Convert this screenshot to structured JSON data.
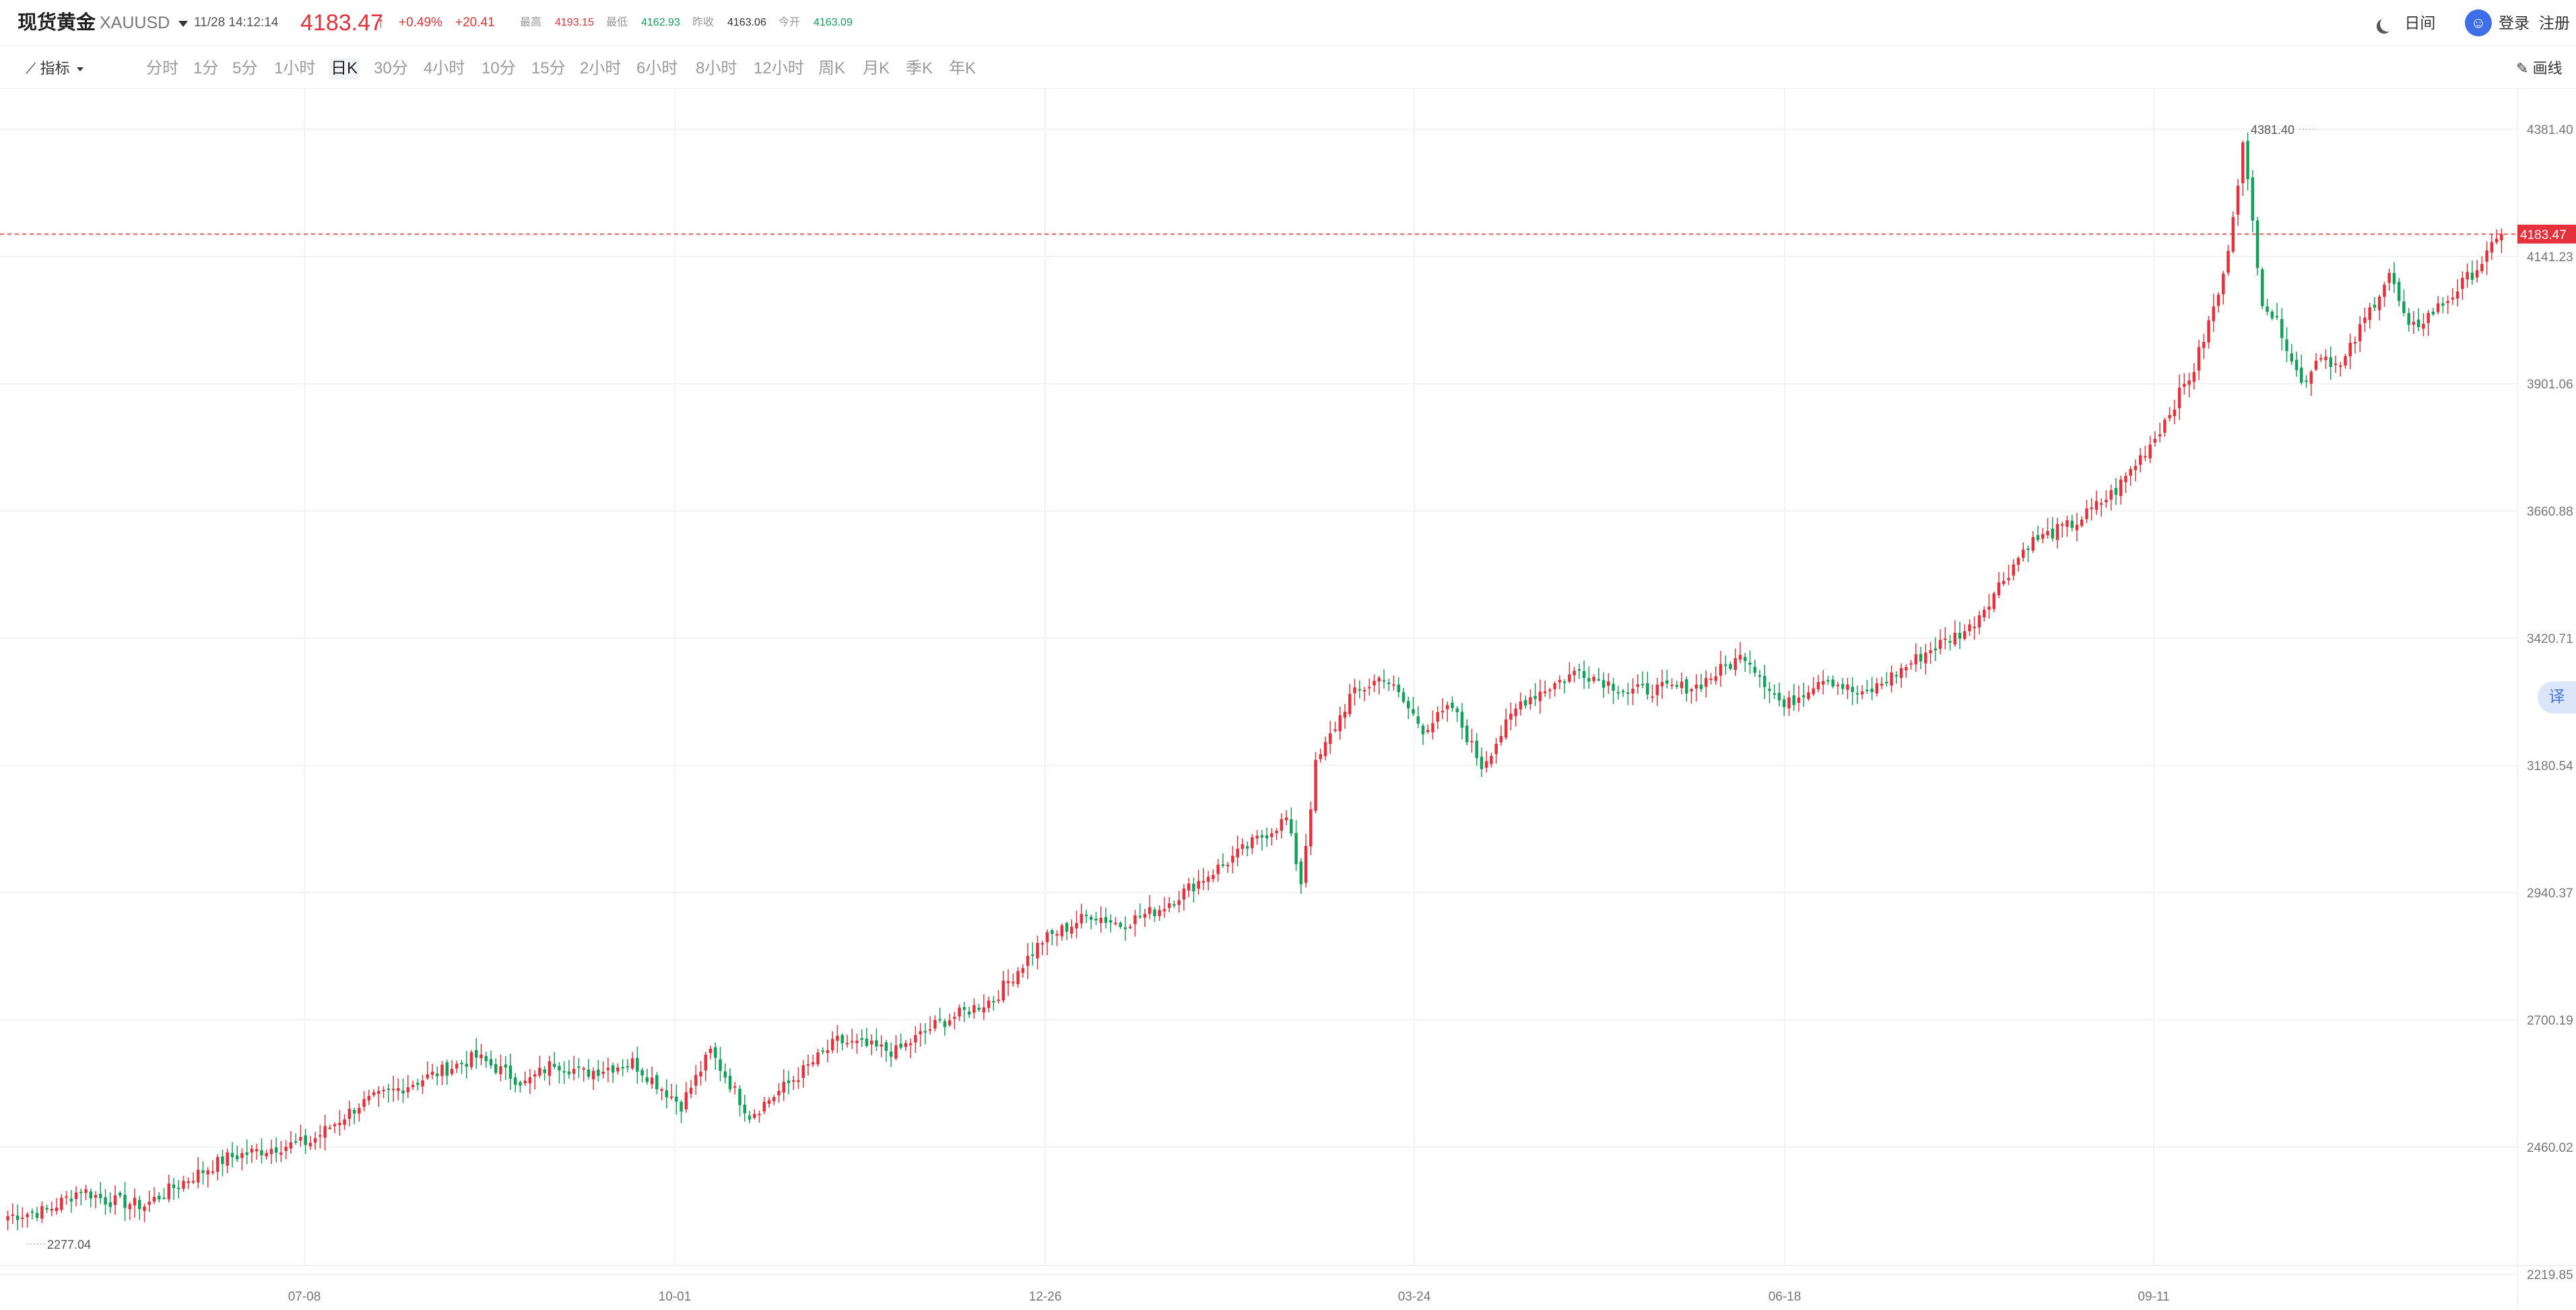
{
  "header": {
    "title": "现货黄金",
    "symbol": "XAUUSD",
    "datetime": "11/28 14:12:14",
    "price": "4183.47",
    "change_pct": "+0.49%",
    "change_abs": "+20.41",
    "stats": [
      {
        "label": "最高",
        "value": "4193.15",
        "color": "#e5313b"
      },
      {
        "label": "最低",
        "value": "4162.93",
        "color": "#13a05a"
      },
      {
        "label": "昨收",
        "value": "4163.06",
        "color": "#333333"
      },
      {
        "label": "今开",
        "value": "4163.09",
        "color": "#13a05a"
      }
    ],
    "night_mode_label": "日间",
    "login_label": "登录",
    "register_label": "注册"
  },
  "toolbar": {
    "indicator_label": "指标",
    "periods": [
      "分时",
      "1分",
      "5分",
      "1小时",
      "日K",
      "30分",
      "4小时",
      "10分",
      "15分",
      "2小时",
      "6小时",
      "8小时",
      "12小时",
      "周K",
      "月K",
      "季K",
      "年K"
    ],
    "active_period": "日K",
    "draw_label": "画线"
  },
  "chart_data": {
    "type": "candlestick",
    "y_ticks": [
      "4381.40",
      "4141.23",
      "3901.06",
      "3660.88",
      "3420.71",
      "3180.54",
      "2940.37",
      "2700.19",
      "2460.02",
      "2219.85"
    ],
    "x_ticks": [
      "07-08",
      "10-01",
      "12-26",
      "03-24",
      "06-18",
      "09-11"
    ],
    "ylim": [
      2219.85,
      4381.4
    ],
    "current_price": 4183.47,
    "high_marker": "4381.40",
    "low_marker": "2277.04",
    "up_color": "#e5313b",
    "down_color": "#13a05a",
    "waypoints": [
      [
        0,
        2330
      ],
      [
        8,
        2340
      ],
      [
        15,
        2380
      ],
      [
        20,
        2360
      ],
      [
        28,
        2350
      ],
      [
        35,
        2390
      ],
      [
        45,
        2440
      ],
      [
        55,
        2460
      ],
      [
        62,
        2470
      ],
      [
        72,
        2540
      ],
      [
        80,
        2570
      ],
      [
        88,
        2600
      ],
      [
        96,
        2630
      ],
      [
        106,
        2580
      ],
      [
        112,
        2620
      ],
      [
        118,
        2600
      ],
      [
        128,
        2620
      ],
      [
        138,
        2540
      ],
      [
        144,
        2640
      ],
      [
        152,
        2520
      ],
      [
        160,
        2580
      ],
      [
        170,
        2660
      ],
      [
        182,
        2640
      ],
      [
        190,
        2690
      ],
      [
        202,
        2740
      ],
      [
        212,
        2850
      ],
      [
        222,
        2900
      ],
      [
        228,
        2880
      ],
      [
        236,
        2910
      ],
      [
        250,
        3000
      ],
      [
        262,
        3080
      ],
      [
        265,
        2960
      ],
      [
        268,
        3180
      ],
      [
        275,
        3310
      ],
      [
        282,
        3350
      ],
      [
        290,
        3250
      ],
      [
        296,
        3290
      ],
      [
        302,
        3180
      ],
      [
        310,
        3300
      ],
      [
        322,
        3360
      ],
      [
        332,
        3320
      ],
      [
        346,
        3330
      ],
      [
        356,
        3390
      ],
      [
        364,
        3290
      ],
      [
        372,
        3350
      ],
      [
        380,
        3310
      ],
      [
        394,
        3400
      ],
      [
        402,
        3440
      ],
      [
        414,
        3600
      ],
      [
        424,
        3640
      ],
      [
        432,
        3700
      ],
      [
        440,
        3800
      ],
      [
        448,
        3930
      ],
      [
        454,
        4100
      ],
      [
        458,
        4350
      ],
      [
        462,
        4060
      ],
      [
        466,
        4000
      ],
      [
        470,
        3900
      ],
      [
        474,
        3960
      ],
      [
        478,
        3930
      ],
      [
        484,
        4040
      ],
      [
        488,
        4110
      ],
      [
        492,
        4000
      ],
      [
        500,
        4060
      ],
      [
        506,
        4120
      ],
      [
        511,
        4180
      ]
    ]
  }
}
